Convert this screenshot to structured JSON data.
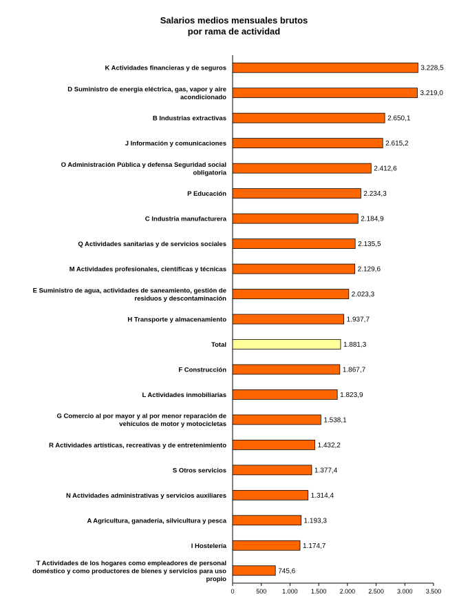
{
  "chart_data": {
    "type": "bar",
    "orientation": "horizontal",
    "title": "Salarios medios mensuales brutos",
    "subtitle": "por rama de actividad",
    "categories": [
      "K  Actividades financieras y de seguros",
      "D  Suministro de energía eléctrica, gas, vapor y aire acondicionado",
      "B  Industrias extractivas",
      "J  Información y comunicaciones",
      "O  Administración Pública y defensa Seguridad social obligatoria",
      "P  Educación",
      "C  Industria manufacturera",
      "Q  Actividades sanitarias y de servicios sociales",
      "M  Actividades profesionales, científicas y técnicas",
      "E  Suministro de agua, actividades de saneamiento, gestión de residuos y descontaminación",
      "H  Transporte y almacenamiento",
      "Total",
      "F  Construcción",
      "L  Actividades inmobiliarias",
      "G  Comercio al por mayor y al por menor reparación de vehículos de motor y motocicletas",
      "R  Actividades artísticas, recreativas y de entretenimiento",
      "S  Otros servicios",
      "N  Actividades administrativas y servicios auxiliares",
      "A  Agricultura, ganadería, silvicultura y pesca",
      "I  Hostelería",
      "T  Actividades de los hogares como empleadores de personal doméstico y como productores de bienes y servicios para uso propio"
    ],
    "label_lines": [
      [
        "K  Actividades financieras y de seguros"
      ],
      [
        "D  Suministro de energía eléctrica, gas, vapor y aire",
        "acondicionado"
      ],
      [
        "B  Industrias extractivas"
      ],
      [
        "J  Información y comunicaciones"
      ],
      [
        "O  Administración Pública y defensa Seguridad social",
        "obligatoria"
      ],
      [
        "P  Educación"
      ],
      [
        "C  Industria manufacturera"
      ],
      [
        "Q  Actividades sanitarias y de servicios sociales"
      ],
      [
        "M  Actividades profesionales, científicas y técnicas"
      ],
      [
        "E  Suministro de agua, actividades de saneamiento, gestión de",
        "residuos y descontaminación"
      ],
      [
        "H  Transporte y almacenamiento"
      ],
      [
        "Total"
      ],
      [
        "F  Construcción"
      ],
      [
        "L  Actividades inmobiliarias"
      ],
      [
        "G  Comercio al por mayor y al por menor reparación de",
        "vehículos de motor y motocicletas"
      ],
      [
        "R  Actividades artísticas, recreativas y de entretenimiento"
      ],
      [
        "S  Otros servicios"
      ],
      [
        "N  Actividades administrativas y servicios auxiliares"
      ],
      [
        "A  Agricultura, ganadería, silvicultura y pesca"
      ],
      [
        "I  Hostelería"
      ],
      [
        "T  Actividades de los hogares como empleadores de personal",
        "doméstico y como productores de bienes y servicios para uso",
        "propio"
      ]
    ],
    "values": [
      3228.5,
      3219.0,
      2650.1,
      2615.2,
      2412.6,
      2234.3,
      2184.9,
      2135.5,
      2129.6,
      2023.3,
      1937.7,
      1881.3,
      1867.7,
      1823.9,
      1538.1,
      1432.2,
      1377.4,
      1314.4,
      1193.3,
      1174.7,
      745.6
    ],
    "value_labels": [
      "3.228,5",
      "3.219,0",
      "2.650,1",
      "2.615,2",
      "2.412,6",
      "2.234,3",
      "2.184,9",
      "2.135,5",
      "2.129,6",
      "2.023,3",
      "1.937,7",
      "1.881,3",
      "1.867,7",
      "1.823,9",
      "1.538,1",
      "1.432,2",
      "1.377,4",
      "1.314,4",
      "1.193,3",
      "1.174,7",
      "745,6"
    ],
    "highlight_category": "Total",
    "xlim": [
      0,
      3500
    ],
    "xticks": [
      0,
      500,
      1000,
      1500,
      2000,
      2500,
      3000,
      3500
    ],
    "xtick_labels": [
      "0",
      "500",
      "1.000",
      "1.500",
      "2.000",
      "2.500",
      "3.000",
      "3.500"
    ],
    "grid": false,
    "legend": "none",
    "colors": {
      "bar": "#FF6600",
      "highlight_bar": "#FFFF99",
      "bar_stroke": "#000000"
    }
  }
}
